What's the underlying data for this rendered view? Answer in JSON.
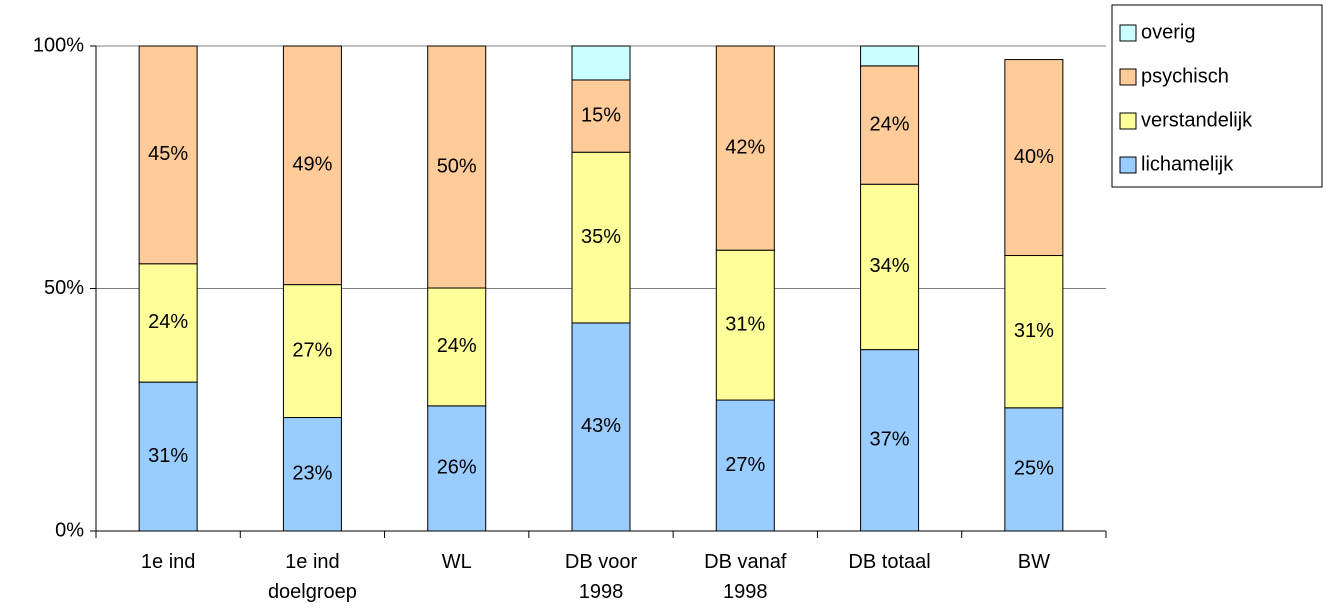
{
  "chart_data": {
    "type": "bar",
    "stacked": true,
    "categories": [
      "1e ind",
      "1e ind\ndoelgroep",
      "WL",
      "DB voor\n1998",
      "DB vanaf\n1998",
      "DB totaal",
      "BW"
    ],
    "series": [
      {
        "name": "lichamelijk",
        "color": "#99ccff",
        "values": [
          30.7,
          23.4,
          25.8,
          42.9,
          27.0,
          37.4,
          25.4
        ],
        "value_labels": [
          "31%",
          "23%",
          "26%",
          "43%",
          "27%",
          "37%",
          "25%"
        ]
      },
      {
        "name": "verstandelijk",
        "color": "#ffff99",
        "values": [
          24.4,
          27.4,
          24.3,
          35.2,
          30.9,
          34.1,
          31.4
        ],
        "value_labels": [
          "24%",
          "27%",
          "24%",
          "35%",
          "31%",
          "34%",
          "31%"
        ]
      },
      {
        "name": "psychisch",
        "color": "#ffcc99",
        "values": [
          44.9,
          49.2,
          49.9,
          14.9,
          42.1,
          24.4,
          40.4
        ],
        "value_labels": [
          "45%",
          "49%",
          "50%",
          "15%",
          "42%",
          "24%",
          "40%"
        ]
      },
      {
        "name": "overig",
        "color": "#ccffff",
        "values": [
          0,
          0,
          0,
          7.0,
          0,
          4.1,
          0
        ]
      }
    ],
    "ylim": [
      0,
      100
    ],
    "yticks": [
      {
        "value": 0,
        "label": "0%"
      },
      {
        "value": 50,
        "label": "50%"
      },
      {
        "value": 100,
        "label": "100%"
      }
    ],
    "grid": true,
    "legend": "right"
  }
}
